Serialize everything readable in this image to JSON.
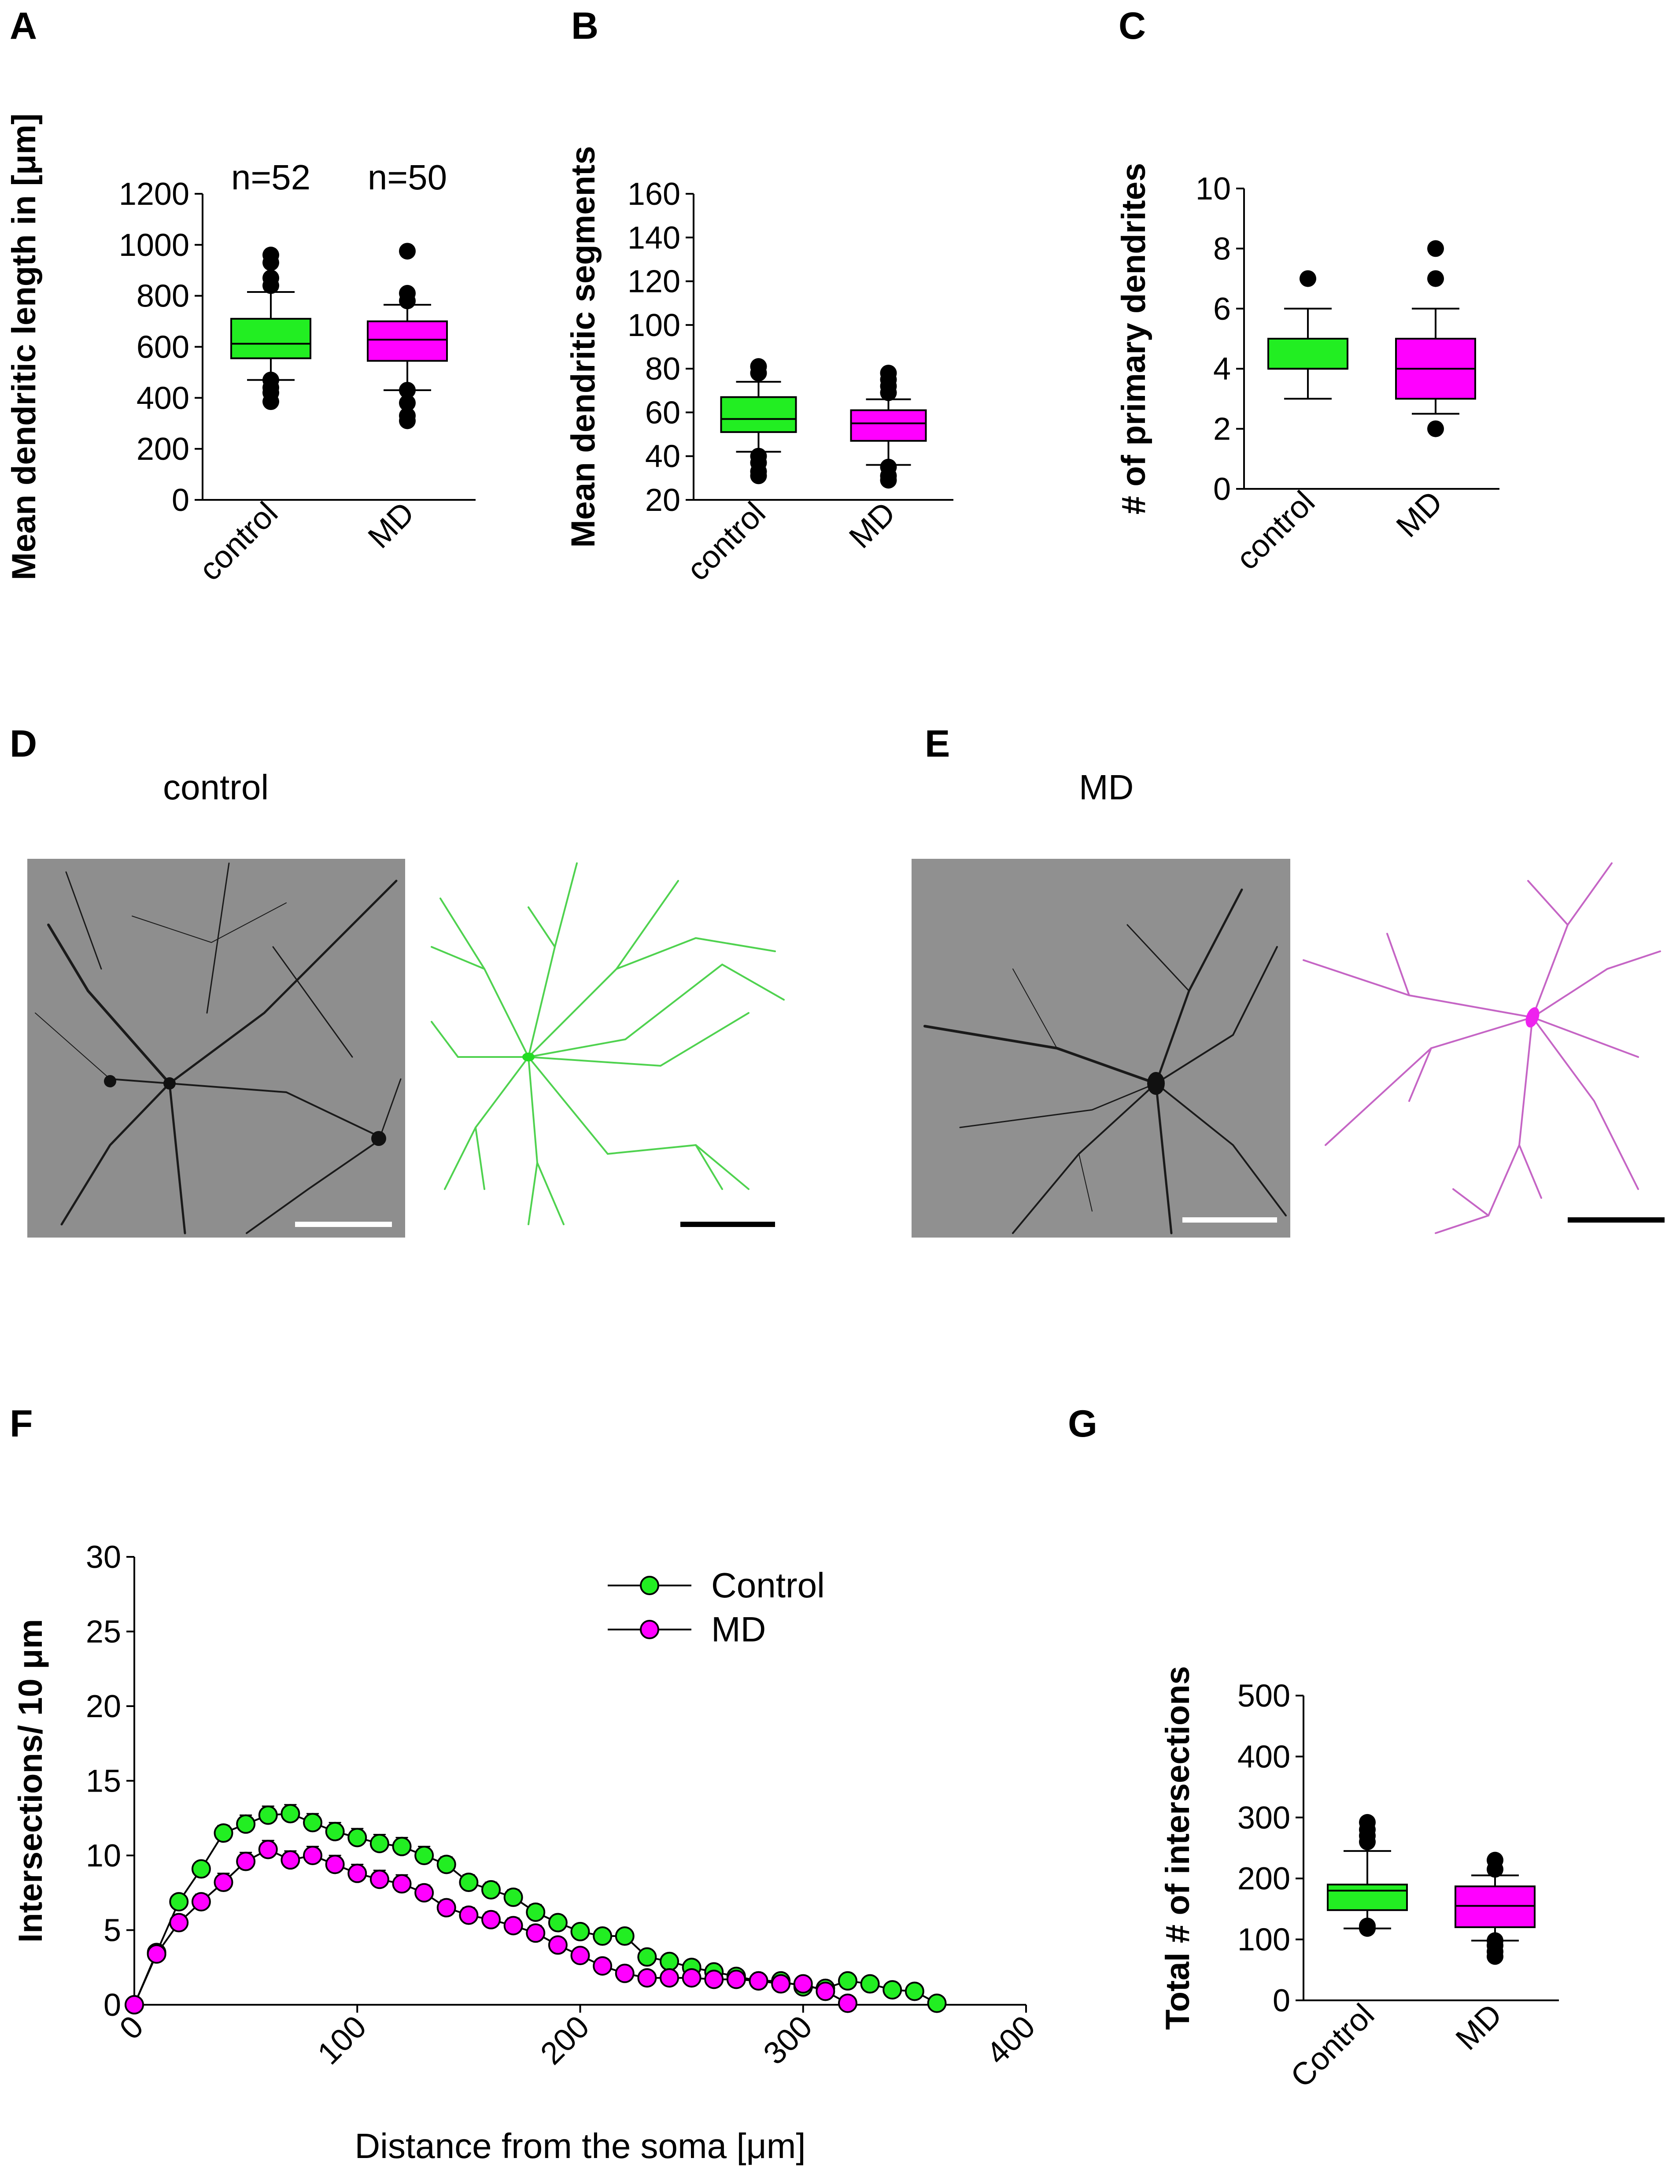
{
  "panels": {
    "A": {
      "label": "A"
    },
    "B": {
      "label": "B"
    },
    "C": {
      "label": "C"
    },
    "D": {
      "label": "D",
      "caption": "control"
    },
    "E": {
      "label": "E",
      "caption": "MD"
    },
    "F": {
      "label": "F"
    },
    "G": {
      "label": "G"
    }
  },
  "colors": {
    "control": "#22ee22",
    "md": "#ff00ff",
    "control_trace": "#4fd24f",
    "md_trace": "#c565c5"
  },
  "chart_data": [
    {
      "id": "A",
      "type": "box",
      "categories": [
        "control",
        "MD"
      ],
      "ylabel": "Mean dendritic length in [μm]",
      "ylim": [
        0,
        1200
      ],
      "yticks": [
        0,
        200,
        400,
        600,
        800,
        1000,
        1200
      ],
      "annotations": [
        "n=52",
        "n=50"
      ],
      "boxes": [
        {
          "name": "control",
          "q1": 555,
          "median": 612,
          "q3": 710,
          "whisker_low": 470,
          "whisker_high": 815,
          "outliers": [
            385,
            420,
            440,
            470,
            840,
            870,
            930,
            960
          ]
        },
        {
          "name": "MD",
          "q1": 545,
          "median": 628,
          "q3": 700,
          "whisker_low": 430,
          "whisker_high": 765,
          "outliers": [
            310,
            330,
            380,
            430,
            780,
            810,
            975
          ]
        }
      ]
    },
    {
      "id": "B",
      "type": "box",
      "categories": [
        "control",
        "MD"
      ],
      "ylabel": "Mean dendritic segments",
      "ylim": [
        20,
        160
      ],
      "yticks": [
        20,
        40,
        60,
        80,
        100,
        120,
        140,
        160
      ],
      "boxes": [
        {
          "name": "control",
          "q1": 51,
          "median": 57,
          "q3": 67,
          "whisker_low": 42,
          "whisker_high": 74,
          "outliers": [
            31,
            33,
            37,
            40,
            78,
            81
          ]
        },
        {
          "name": "MD",
          "q1": 47,
          "median": 55,
          "q3": 61,
          "whisker_low": 36,
          "whisker_high": 66,
          "outliers": [
            29,
            31,
            35,
            69,
            72,
            75,
            78
          ]
        }
      ]
    },
    {
      "id": "C",
      "type": "box",
      "categories": [
        "control",
        "MD"
      ],
      "ylabel": "# of primary dendrites",
      "ylim": [
        0,
        10
      ],
      "yticks": [
        0,
        2,
        4,
        6,
        8,
        10
      ],
      "boxes": [
        {
          "name": "control",
          "q1": 4,
          "median": 4,
          "q3": 5,
          "whisker_low": 3,
          "whisker_high": 6,
          "outliers": [
            7
          ]
        },
        {
          "name": "MD",
          "q1": 3,
          "median": 4,
          "q3": 5,
          "whisker_low": 2.5,
          "whisker_high": 6,
          "outliers": [
            2,
            7,
            8
          ]
        }
      ]
    },
    {
      "id": "F",
      "type": "line",
      "xlabel": "Distance from the soma [μm]",
      "ylabel": "Intersections/ 10 μm",
      "xlim": [
        0,
        400
      ],
      "ylim": [
        0,
        30
      ],
      "xticks": [
        0,
        100,
        200,
        300,
        400
      ],
      "yticks": [
        0,
        5,
        10,
        15,
        20,
        25,
        30
      ],
      "legend_position": "top-right",
      "series": [
        {
          "name": "Control",
          "x": [
            0,
            10,
            20,
            30,
            40,
            50,
            60,
            70,
            80,
            90,
            100,
            110,
            120,
            130,
            140,
            150,
            160,
            170,
            180,
            190,
            200,
            210,
            220,
            230,
            240,
            250,
            260,
            270,
            280,
            290,
            300,
            310,
            320,
            330,
            340,
            350,
            360
          ],
          "y": [
            0,
            3.5,
            6.9,
            9.1,
            11.5,
            12.1,
            12.7,
            12.8,
            12.2,
            11.6,
            11.2,
            10.8,
            10.6,
            10.0,
            9.4,
            8.2,
            7.7,
            7.2,
            6.2,
            5.5,
            4.9,
            4.6,
            4.6,
            3.2,
            2.9,
            2.5,
            2.2,
            1.9,
            1.6,
            1.6,
            1.2,
            1.1,
            1.6,
            1.4,
            1.0,
            0.9,
            0.1
          ],
          "err": [
            0,
            0.3,
            0.4,
            0.4,
            0.5,
            0.6,
            0.6,
            0.6,
            0.6,
            0.6,
            0.6,
            0.6,
            0.6,
            0.6,
            0.5,
            0.5,
            0.5,
            0.5,
            0.5,
            0.4,
            0.4,
            0.4,
            0.4,
            0.3,
            0.3,
            0.3,
            0.3,
            0.3,
            0.3,
            0.3,
            0.2,
            0.2,
            0.3,
            0.3,
            0.2,
            0.2,
            0.05
          ]
        },
        {
          "name": "MD",
          "x": [
            0,
            10,
            20,
            30,
            40,
            50,
            60,
            70,
            80,
            90,
            100,
            110,
            120,
            130,
            140,
            150,
            160,
            170,
            180,
            190,
            200,
            210,
            220,
            230,
            240,
            250,
            260,
            270,
            280,
            290,
            300,
            310,
            320
          ],
          "y": [
            0,
            3.4,
            5.5,
            6.9,
            8.2,
            9.6,
            10.4,
            9.7,
            10.0,
            9.4,
            8.8,
            8.4,
            8.1,
            7.5,
            6.5,
            6.0,
            5.7,
            5.3,
            4.8,
            4.0,
            3.3,
            2.6,
            2.1,
            1.8,
            1.8,
            1.8,
            1.7,
            1.7,
            1.6,
            1.4,
            1.4,
            0.9,
            0.1
          ],
          "err": [
            0,
            0.4,
            0.5,
            0.5,
            0.6,
            0.6,
            0.6,
            0.6,
            0.6,
            0.6,
            0.6,
            0.6,
            0.6,
            0.5,
            0.5,
            0.5,
            0.5,
            0.5,
            0.5,
            0.4,
            0.4,
            0.4,
            0.3,
            0.3,
            0.3,
            0.3,
            0.3,
            0.3,
            0.3,
            0.2,
            0.2,
            0.2,
            0.05
          ]
        }
      ]
    },
    {
      "id": "G",
      "type": "box",
      "categories": [
        "Control",
        "MD"
      ],
      "ylabel": "Total # of intersections",
      "ylim": [
        0,
        500
      ],
      "yticks": [
        0,
        100,
        200,
        300,
        400,
        500
      ],
      "boxes": [
        {
          "name": "Control",
          "q1": 148,
          "median": 180,
          "q3": 190,
          "whisker_low": 118,
          "whisker_high": 245,
          "outliers": [
            118,
            122,
            260,
            270,
            280,
            292
          ]
        },
        {
          "name": "MD",
          "q1": 120,
          "median": 155,
          "q3": 187,
          "whisker_low": 98,
          "whisker_high": 205,
          "outliers": [
            72,
            80,
            90,
            98,
            215,
            230
          ]
        }
      ]
    }
  ]
}
